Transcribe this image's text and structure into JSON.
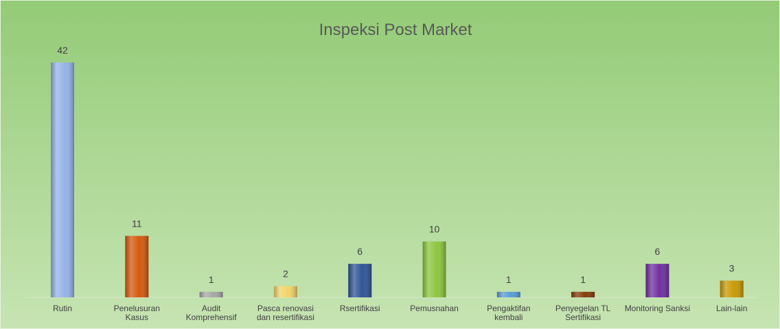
{
  "chart_data": {
    "type": "bar",
    "title": "Inspeksi Post Market",
    "categories": [
      "Rutin",
      "Penelusuran Kasus",
      "Audit Komprehensif",
      "Pasca renovasi dan resertifikasi",
      "Rsertifikasi",
      "Pemusnahan",
      "Pengaktifan kembali",
      "Penyegelan TL Sertifikasi",
      "Monitoring Sanksi",
      "Lain-lain"
    ],
    "values": [
      42,
      11,
      1,
      2,
      6,
      10,
      1,
      1,
      6,
      3
    ],
    "colors": [
      "#95b3e8",
      "#d45a10",
      "#a6a6a6",
      "#f2d46a",
      "#2f5597",
      "#8cc63f",
      "#5b9bd5",
      "#843c0c",
      "#7030a0",
      "#c99a06"
    ]
  }
}
